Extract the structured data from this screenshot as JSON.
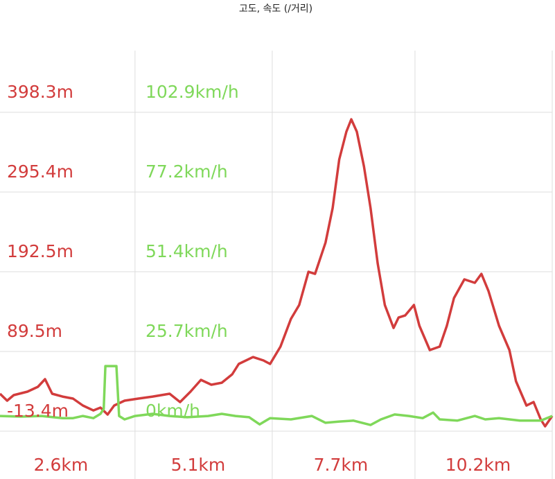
{
  "chart_data": {
    "type": "line",
    "title": "고도, 속도 (/거리)",
    "xlim": [
      0.14,
      10.2
    ],
    "xticks": [
      {
        "value": 2.6,
        "label": "2.6km"
      },
      {
        "value": 5.1,
        "label": "5.1km"
      },
      {
        "value": 7.7,
        "label": "7.7km"
      },
      {
        "value": 10.2,
        "label": "10.2km"
      }
    ],
    "ylim": [
      -13.4,
      398.3
    ],
    "yticks": [
      {
        "value": -13.4,
        "label": "-13.4m"
      },
      {
        "value": 89.5,
        "label": "89.5m"
      },
      {
        "value": 192.5,
        "label": "192.5m"
      },
      {
        "value": 295.4,
        "label": "295.4m"
      },
      {
        "value": 398.3,
        "label": "398.3m"
      }
    ],
    "y2lim": [
      0,
      102.9
    ],
    "y2ticks": [
      {
        "value": 0,
        "label": "0km/h"
      },
      {
        "value": 25.7,
        "label": "25.7km/h"
      },
      {
        "value": 51.4,
        "label": "51.4km/h"
      },
      {
        "value": 77.2,
        "label": "77.2km/h"
      },
      {
        "value": 102.9,
        "label": "102.9km/h"
      }
    ],
    "grid": true,
    "series": [
      {
        "color": "#d23c3c",
        "x": [
          0.14,
          0.27,
          0.39,
          0.64,
          0.83,
          0.96,
          1.09,
          1.28,
          1.47,
          1.65,
          1.84,
          1.97,
          2.1,
          2.22,
          2.41,
          2.66,
          2.92,
          3.23,
          3.42,
          3.61,
          3.8,
          3.99,
          4.18,
          4.37,
          4.49,
          4.75,
          4.94,
          5.06,
          5.25,
          5.44,
          5.59,
          5.76,
          5.88,
          6.07,
          6.2,
          6.32,
          6.45,
          6.54,
          6.64,
          6.77,
          6.89,
          7.02,
          7.15,
          7.31,
          7.4,
          7.52,
          7.68,
          7.78,
          7.97,
          8.15,
          8.28,
          8.41,
          8.6,
          8.79,
          8.91,
          9.04,
          9.23,
          9.42,
          9.54,
          9.73,
          9.86,
          9.99,
          10.07,
          10.2
        ],
        "values": [
          34.9,
          26.0,
          33.1,
          37.6,
          43.9,
          53.7,
          34.9,
          31.3,
          28.7,
          19.7,
          13.4,
          17.0,
          8.1,
          19.7,
          26.0,
          28.7,
          31.3,
          34.9,
          24.2,
          37.6,
          52.8,
          46.6,
          49.2,
          60.0,
          73.4,
          82.3,
          77.9,
          73.4,
          95.8,
          131.6,
          149.5,
          192.4,
          189.7,
          230.0,
          274.7,
          337.4,
          373.2,
          389.3,
          373.2,
          328.4,
          274.7,
          203.1,
          149.5,
          119.9,
          133.3,
          136.0,
          149.5,
          122.6,
          91.3,
          95.8,
          122.6,
          158.4,
          182.6,
          178.1,
          189.7,
          167.3,
          122.6,
          91.3,
          51.0,
          19.7,
          24.2,
          1.8,
          -7.1,
          6.3
        ]
      },
      {
        "color": "#7fd85a",
        "axis": "y2",
        "x": [
          0.14,
          0.52,
          0.9,
          1.28,
          1.47,
          1.65,
          1.84,
          1.97,
          2.03,
          2.06,
          2.26,
          2.31,
          2.41,
          2.6,
          2.92,
          3.23,
          3.55,
          3.93,
          4.18,
          4.43,
          4.68,
          4.87,
          5.06,
          5.44,
          5.82,
          6.07,
          6.32,
          6.58,
          6.89,
          7.08,
          7.33,
          7.59,
          7.84,
          8.03,
          8.15,
          8.47,
          8.79,
          8.98,
          9.23,
          9.61,
          9.99,
          10.2
        ],
        "values": [
          4.9,
          4.7,
          4.9,
          4.2,
          4.2,
          4.9,
          4.2,
          5.6,
          7.2,
          21.0,
          21.0,
          4.9,
          3.8,
          4.9,
          5.6,
          4.9,
          4.5,
          4.9,
          5.6,
          4.9,
          4.5,
          2.2,
          4.2,
          3.8,
          4.9,
          2.7,
          3.1,
          3.4,
          2.0,
          3.8,
          5.4,
          4.9,
          4.2,
          6.0,
          3.8,
          3.4,
          4.9,
          3.8,
          4.2,
          3.4,
          3.4,
          4.9
        ]
      }
    ]
  }
}
